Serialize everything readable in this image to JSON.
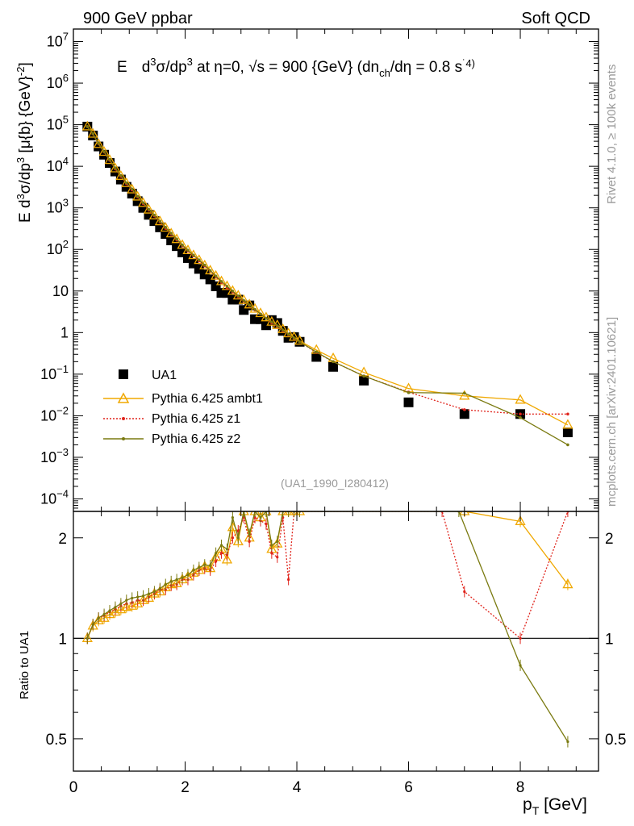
{
  "header": {
    "left": "900 GeV ppbar",
    "right": "Soft QCD"
  },
  "side": {
    "rivet": "Rivet 4.1.0, ≥ 100k events",
    "mcplots": "mcplots.cern.ch [arXiv:2401.10621]"
  },
  "colors": {
    "data": "#000000",
    "ambt1": "#f0a800",
    "z1": "#e0241c",
    "z2": "#7a7a10",
    "refline": "#000000"
  },
  "chart_data": [
    {
      "type": "scatter",
      "title": "E  d³σ/dp³ at η=0, √s = 900 {GeV} (dn_ch/dη = 0.8 s^.4)",
      "title_parts": {
        "p1": "E",
        "p2": "d",
        "p3": "3",
        "p4": "σ/dp",
        "p5": "3",
        "p6": " at η=0, √s = 900 {GeV} (dn",
        "p7": "ch",
        "p8": "/dη = 0.8 s",
        "p9": "˙4)"
      },
      "ylabel": "E d³σ/dp³ [μ{b} {GeV}⁻²]",
      "ylabel_parts": {
        "a": "E d",
        "b": "3",
        "c": "σ/dp",
        "d": "3",
        "e": " [μ{b} {GeV}",
        "f": "-2",
        "g": "]"
      },
      "yscale": "log",
      "ylim": [
        5e-05,
        20000000.0
      ],
      "xlim": [
        0,
        9.4
      ],
      "y_ticks": [
        {
          "v": 10000000.0,
          "label": "10",
          "exp": "7"
        },
        {
          "v": 1000000.0,
          "label": "10",
          "exp": "6"
        },
        {
          "v": 100000.0,
          "label": "10",
          "exp": "5"
        },
        {
          "v": 10000.0,
          "label": "10",
          "exp": "4"
        },
        {
          "v": 1000.0,
          "label": "10",
          "exp": "3"
        },
        {
          "v": 100,
          "label": "10",
          "exp": "2"
        },
        {
          "v": 10,
          "label": "10",
          "exp": ""
        },
        {
          "v": 1,
          "label": "1",
          "exp": ""
        },
        {
          "v": 0.1,
          "label": "10",
          "exp": "−1"
        },
        {
          "v": 0.01,
          "label": "10",
          "exp": "−2"
        },
        {
          "v": 0.001,
          "label": "10",
          "exp": "−3"
        },
        {
          "v": 0.0001,
          "label": "10",
          "exp": "−4"
        }
      ],
      "analysis_tag": "(UA1_1990_I280412)",
      "legend_position": "middle-left",
      "series": [
        {
          "name": "UA1",
          "key": "data",
          "marker": "square",
          "x": [
            0.25,
            0.35,
            0.45,
            0.55,
            0.65,
            0.75,
            0.85,
            0.95,
            1.05,
            1.15,
            1.25,
            1.35,
            1.45,
            1.55,
            1.65,
            1.75,
            1.85,
            1.95,
            2.05,
            2.15,
            2.25,
            2.35,
            2.45,
            2.55,
            2.65,
            2.75,
            2.85,
            2.95,
            3.05,
            3.15,
            3.25,
            3.35,
            3.45,
            3.55,
            3.65,
            3.75,
            3.85,
            3.95,
            4.05,
            4.35,
            4.65,
            5.2,
            6.0,
            7.0,
            8.0,
            8.85
          ],
          "y": [
            90000,
            55000,
            30000,
            19000,
            12000,
            7500,
            4800,
            3200,
            2200,
            1450,
            1000,
            680,
            480,
            340,
            235,
            165,
            120,
            85,
            62,
            46,
            34,
            25,
            19,
            13,
            9,
            9,
            6.2,
            6.2,
            3.5,
            4.5,
            2.1,
            2.1,
            1.5,
            2.0,
            1.7,
            1.1,
            0.75,
            0.78,
            0.6,
            0.26,
            0.15,
            0.07,
            0.021,
            0.011,
            0.011,
            0.004
          ]
        },
        {
          "name": "Pythia 6.425 ambt1",
          "key": "ambt1",
          "marker": "triangle",
          "x": [
            0.25,
            0.35,
            0.45,
            0.55,
            0.65,
            0.75,
            0.85,
            0.95,
            1.05,
            1.15,
            1.25,
            1.35,
            1.45,
            1.55,
            1.65,
            1.75,
            1.85,
            1.95,
            2.05,
            2.15,
            2.25,
            2.35,
            2.45,
            2.55,
            2.65,
            2.75,
            2.85,
            2.95,
            3.05,
            3.15,
            3.25,
            3.35,
            3.45,
            3.55,
            3.65,
            3.75,
            3.85,
            3.95,
            4.05,
            4.35,
            4.65,
            5.2,
            6.0,
            7.0,
            8.0,
            8.85
          ],
          "y": [
            90000,
            60000,
            34000,
            22000,
            14000,
            8800,
            5800,
            3900,
            2750,
            1850,
            1300,
            900,
            650,
            470,
            330,
            240,
            175,
            127,
            95,
            72,
            55,
            41,
            31,
            23,
            17,
            13,
            10,
            7.7,
            6.0,
            4.7,
            3.7,
            2.9,
            2.3,
            1.8,
            1.5,
            1.2,
            0.95,
            0.78,
            0.63,
            0.38,
            0.24,
            0.11,
            0.045,
            0.03,
            0.024,
            0.006
          ]
        },
        {
          "name": "Pythia 6.425 z1",
          "key": "z1",
          "marker": "dot",
          "x": [
            0.25,
            0.35,
            0.45,
            0.55,
            0.65,
            0.75,
            0.85,
            0.95,
            1.05,
            1.15,
            1.25,
            1.35,
            1.45,
            1.55,
            1.65,
            1.75,
            1.85,
            1.95,
            2.05,
            2.15,
            2.25,
            2.35,
            2.45,
            2.55,
            2.65,
            2.75,
            2.85,
            2.95,
            3.05,
            3.15,
            3.25,
            3.35,
            3.45,
            3.55,
            3.65,
            3.75,
            3.85,
            3.95,
            4.05,
            4.35,
            4.65,
            5.2,
            6.0,
            7.0,
            8.0,
            8.85
          ],
          "y": [
            90000,
            60000,
            35000,
            22000,
            14000,
            8600,
            5700,
            3800,
            2700,
            1820,
            1270,
            880,
            640,
            460,
            320,
            235,
            170,
            123,
            92,
            70,
            53,
            40,
            30,
            22,
            16,
            12,
            9.5,
            7.3,
            5.7,
            4.5,
            3.5,
            2.8,
            2.2,
            1.7,
            1.4,
            1.1,
            0.9,
            0.72,
            0.6,
            0.33,
            0.2,
            0.09,
            0.037,
            0.014,
            0.011,
            0.011
          ]
        },
        {
          "name": "Pythia 6.425 z2",
          "key": "z2",
          "marker": "dot",
          "x": [
            0.25,
            0.35,
            0.45,
            0.55,
            0.65,
            0.75,
            0.85,
            0.95,
            1.05,
            1.15,
            1.25,
            1.35,
            1.45,
            1.55,
            1.65,
            1.75,
            1.85,
            1.95,
            2.05,
            2.15,
            2.25,
            2.35,
            2.45,
            2.55,
            2.65,
            2.75,
            2.85,
            2.95,
            3.05,
            3.15,
            3.25,
            3.35,
            3.45,
            3.55,
            3.65,
            3.75,
            3.85,
            3.95,
            4.05,
            4.35,
            4.65,
            5.2,
            6.0,
            7.0,
            8.0,
            8.85
          ],
          "y": [
            90000,
            61000,
            35500,
            22500,
            14500,
            9000,
            6000,
            4000,
            2850,
            1900,
            1330,
            920,
            670,
            480,
            340,
            245,
            178,
            128,
            96,
            73,
            56,
            42,
            31,
            23,
            17,
            13,
            10,
            7.6,
            5.9,
            4.6,
            3.6,
            2.8,
            2.2,
            1.8,
            1.45,
            1.15,
            0.92,
            0.74,
            0.6,
            0.34,
            0.2,
            0.09,
            0.036,
            0.035,
            0.009,
            0.002
          ]
        }
      ]
    },
    {
      "type": "line",
      "ylabel": "Ratio to UA1",
      "xlabel": "p_T [GeV]",
      "xlabel_parts": {
        "a": "p",
        "b": "T",
        "c": " [GeV]"
      },
      "yscale": "log",
      "ylim": [
        0.4,
        2.4
      ],
      "xlim": [
        0,
        9.4
      ],
      "x_ticks": [
        0,
        2,
        4,
        6,
        8
      ],
      "y_ticks": [
        0.5,
        1,
        2
      ],
      "reference": 1,
      "series": [
        {
          "name": "Pythia 6.425 ambt1",
          "key": "ambt1",
          "x": [
            0.25,
            0.35,
            0.45,
            0.55,
            0.65,
            0.75,
            0.85,
            0.95,
            1.05,
            1.15,
            1.25,
            1.35,
            1.45,
            1.55,
            1.65,
            1.75,
            1.85,
            1.95,
            2.05,
            2.15,
            2.25,
            2.35,
            2.45,
            2.55,
            2.65,
            2.75,
            2.85,
            2.95,
            3.05,
            3.15,
            3.25,
            3.35,
            3.45,
            3.55,
            3.65,
            3.75,
            3.85,
            3.95,
            4.05,
            7.0,
            8.0,
            8.85
          ],
          "y": [
            1.0,
            1.09,
            1.13,
            1.15,
            1.18,
            1.2,
            1.22,
            1.24,
            1.25,
            1.27,
            1.3,
            1.32,
            1.36,
            1.38,
            1.42,
            1.45,
            1.46,
            1.5,
            1.53,
            1.57,
            1.6,
            1.64,
            1.62,
            1.75,
            1.85,
            1.72,
            2.15,
            1.95,
            2.4,
            2.0,
            2.4,
            2.3,
            2.4,
            1.85,
            1.92,
            2.4,
            2.4,
            2.4,
            2.4,
            2.4,
            2.24,
            1.45
          ]
        },
        {
          "name": "Pythia 6.425 z1",
          "key": "z1",
          "x": [
            0.25,
            0.35,
            0.45,
            0.55,
            0.65,
            0.75,
            0.85,
            0.95,
            1.05,
            1.15,
            1.25,
            1.35,
            1.45,
            1.55,
            1.65,
            1.75,
            1.85,
            1.95,
            2.05,
            2.15,
            2.25,
            2.35,
            2.45,
            2.55,
            2.65,
            2.75,
            2.85,
            2.95,
            3.05,
            3.15,
            3.25,
            3.35,
            3.45,
            3.55,
            3.65,
            3.75,
            3.85,
            3.95,
            4.05,
            6.6,
            7.0,
            8.0,
            8.85
          ],
          "y": [
            1.0,
            1.1,
            1.15,
            1.17,
            1.2,
            1.22,
            1.25,
            1.27,
            1.28,
            1.3,
            1.3,
            1.33,
            1.36,
            1.4,
            1.4,
            1.44,
            1.45,
            1.5,
            1.5,
            1.55,
            1.6,
            1.62,
            1.6,
            1.7,
            1.8,
            1.78,
            2.0,
            2.1,
            2.3,
            1.95,
            2.3,
            2.25,
            2.2,
            1.8,
            1.75,
            2.3,
            1.5,
            2.4,
            2.4,
            2.4,
            1.38,
            1.0,
            2.4
          ]
        },
        {
          "name": "Pythia 6.425 z2",
          "key": "z2",
          "x": [
            0.25,
            0.35,
            0.45,
            0.55,
            0.65,
            0.75,
            0.85,
            0.95,
            1.05,
            1.15,
            1.25,
            1.35,
            1.45,
            1.55,
            1.65,
            1.75,
            1.85,
            1.95,
            2.05,
            2.15,
            2.25,
            2.35,
            2.45,
            2.55,
            2.65,
            2.75,
            2.85,
            2.95,
            3.05,
            3.15,
            3.25,
            3.35,
            3.45,
            3.55,
            3.65,
            3.75,
            3.85,
            3.95,
            4.05,
            6.9,
            8.0,
            8.85
          ],
          "y": [
            1.0,
            1.1,
            1.15,
            1.18,
            1.21,
            1.24,
            1.27,
            1.3,
            1.32,
            1.33,
            1.34,
            1.36,
            1.38,
            1.41,
            1.45,
            1.48,
            1.5,
            1.52,
            1.55,
            1.6,
            1.63,
            1.66,
            1.65,
            1.8,
            1.9,
            1.85,
            2.3,
            2.0,
            2.4,
            2.05,
            2.4,
            2.3,
            2.4,
            1.9,
            1.95,
            2.4,
            2.4,
            2.4,
            2.4,
            2.4,
            0.83,
            0.49
          ]
        }
      ]
    }
  ]
}
